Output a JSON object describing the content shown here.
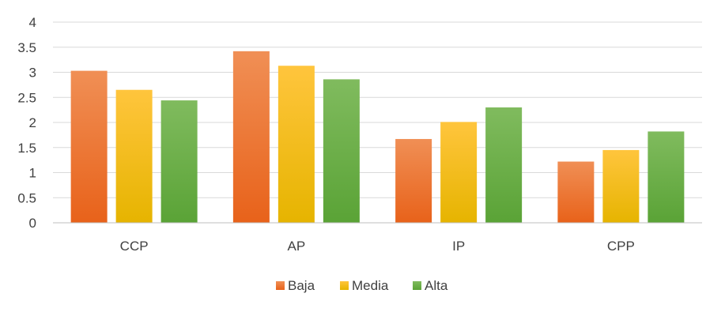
{
  "colors": {
    "grid": "#d9d9d9",
    "axis": "#bfbfbf",
    "text": "#404040"
  },
  "chart_data": {
    "type": "bar",
    "categories": [
      "CCP",
      "AP",
      "IP",
      "CPP"
    ],
    "series": [
      {
        "name": "Baja",
        "values": [
          3.03,
          3.42,
          1.67,
          1.22
        ],
        "color_top": "#f08f55",
        "color_bottom": "#e8621a"
      },
      {
        "name": "Media",
        "values": [
          2.65,
          3.13,
          2.01,
          1.45
        ],
        "color_top": "#ffc53d",
        "color_bottom": "#e6b400"
      },
      {
        "name": "Alta",
        "values": [
          2.44,
          2.86,
          2.3,
          1.82
        ],
        "color_top": "#80bb5e",
        "color_bottom": "#5aa336"
      }
    ],
    "y_ticks": [
      "0",
      "0.5",
      "1",
      "1.5",
      "2",
      "2.5",
      "3",
      "3.5",
      "4"
    ],
    "ylim": [
      0,
      4
    ],
    "grid": true,
    "legend": "bottom-center",
    "title": "",
    "xlabel": "",
    "ylabel": ""
  }
}
